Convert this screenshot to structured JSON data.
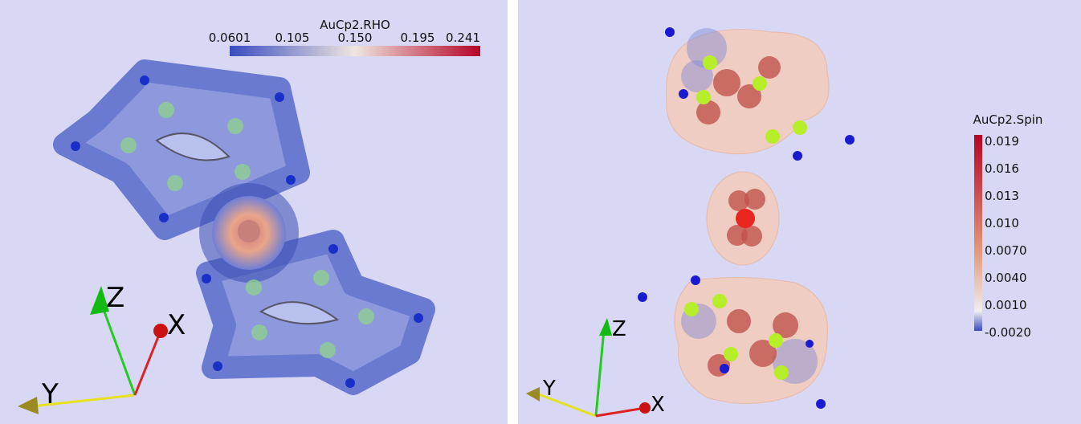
{
  "left_panel": {
    "colorbar": {
      "title": "AuCp2.RHO",
      "ticks": [
        "0.0601",
        "0.105",
        "0.150",
        "0.195",
        "0.241"
      ]
    },
    "axes": {
      "x": "X",
      "y": "Y",
      "z": "Z"
    }
  },
  "right_panel": {
    "colorbar": {
      "title": "AuCp2.Spin",
      "ticks": [
        "0.019",
        "0.016",
        "0.013",
        "0.010",
        "0.0070",
        "0.0040",
        "0.0010",
        "-0.0020"
      ]
    },
    "axes": {
      "x": "X",
      "y": "Y",
      "z": "Z"
    }
  }
}
